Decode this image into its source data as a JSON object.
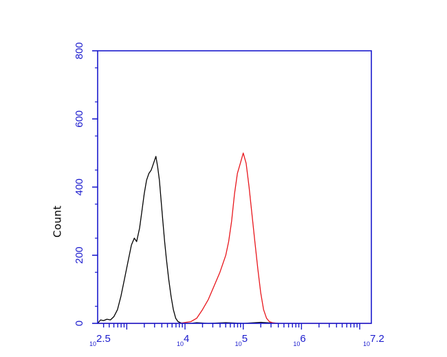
{
  "chart_data": {
    "type": "line",
    "title": "",
    "xlabel": "",
    "ylabel": "Count",
    "x_scale": "log10",
    "xlim": [
      2.5,
      7.2
    ],
    "ylim": [
      0,
      800
    ],
    "grid": false,
    "legend": "none",
    "axis_color": "#1a1acd",
    "y_ticks": [
      {
        "value": 0,
        "label": "0"
      },
      {
        "value": 200,
        "label": "200"
      },
      {
        "value": 400,
        "label": "400"
      },
      {
        "value": 600,
        "label": "600"
      },
      {
        "value": 800,
        "label": "800"
      }
    ],
    "x_ticks": [
      {
        "value": 2.5,
        "base": "10",
        "exp": "2.5"
      },
      {
        "value": 4,
        "base": "10",
        "exp": "4"
      },
      {
        "value": 5,
        "base": "10",
        "exp": "5"
      },
      {
        "value": 6,
        "base": "10",
        "exp": "6"
      },
      {
        "value": 7.2,
        "base": "10",
        "exp": "7.2"
      }
    ],
    "series": [
      {
        "color": "#000000",
        "x": [
          2.5,
          2.55,
          2.6,
          2.66,
          2.72,
          2.78,
          2.84,
          2.9,
          2.96,
          3.02,
          3.08,
          3.13,
          3.17,
          3.22,
          3.26,
          3.3,
          3.34,
          3.38,
          3.42,
          3.46,
          3.5,
          3.53,
          3.56,
          3.59,
          3.62,
          3.65,
          3.68,
          3.72,
          3.76,
          3.8,
          3.84,
          3.88,
          3.92,
          3.96,
          4.0,
          4.05,
          4.1,
          4.2,
          4.4,
          4.7,
          5.0,
          5.3,
          5.6
        ],
        "y": [
          0,
          10,
          8,
          12,
          10,
          20,
          40,
          80,
          130,
          180,
          230,
          250,
          240,
          280,
          330,
          380,
          420,
          440,
          450,
          470,
          490,
          460,
          420,
          360,
          300,
          240,
          190,
          130,
          80,
          40,
          15,
          5,
          2,
          0,
          0,
          0,
          0,
          2,
          0,
          2,
          0,
          3,
          0
        ]
      },
      {
        "color": "#e8151b",
        "x": [
          2.5,
          3.0,
          3.5,
          3.9,
          4.1,
          4.2,
          4.3,
          4.4,
          4.5,
          4.6,
          4.7,
          4.75,
          4.8,
          4.85,
          4.9,
          4.95,
          5.0,
          5.05,
          5.1,
          5.15,
          5.2,
          5.25,
          5.3,
          5.35,
          5.4,
          5.45,
          5.5,
          5.6,
          5.8,
          6.0,
          6.5,
          7.2
        ],
        "y": [
          0,
          0,
          0,
          0,
          5,
          15,
          40,
          70,
          110,
          150,
          200,
          240,
          300,
          380,
          440,
          470,
          500,
          470,
          400,
          320,
          240,
          160,
          90,
          40,
          15,
          5,
          2,
          0,
          0,
          0,
          0,
          0
        ]
      }
    ]
  }
}
